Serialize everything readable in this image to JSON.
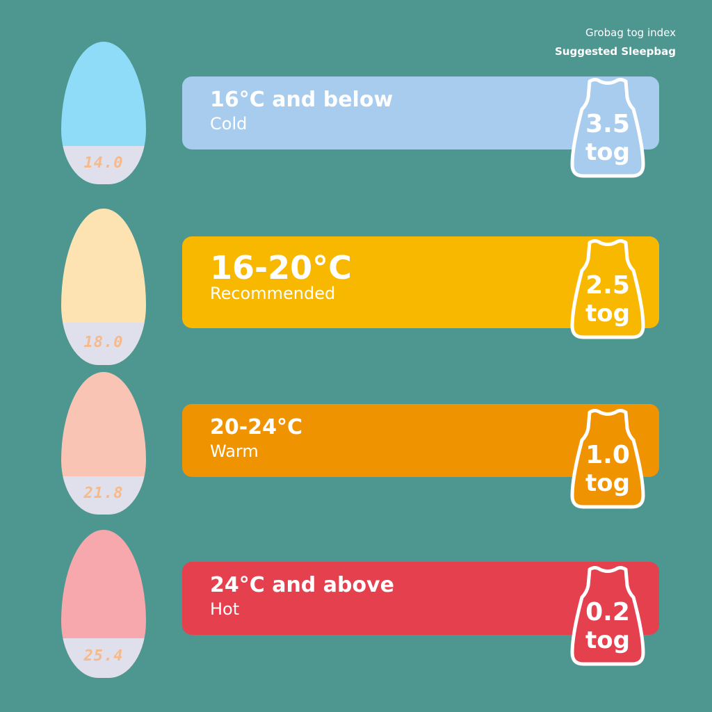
{
  "header": {
    "line1": "Grobag tog index",
    "line2": "Suggested Sleepbag"
  },
  "rows": [
    {
      "title": "16°C and below",
      "subtitle": "Cold",
      "tog": "3.5",
      "unit": "tog",
      "display": "14.0",
      "bar_color": "#a8ccee",
      "egg_color": "#8fdcf8"
    },
    {
      "title": "16-20°C",
      "subtitle": "Recommended",
      "tog": "2.5",
      "unit": "tog",
      "display": "18.0",
      "bar_color": "#f9b800",
      "egg_color": "#fde3b2"
    },
    {
      "title": "20-24°C",
      "subtitle": "Warm",
      "tog": "1.0",
      "unit": "tog",
      "display": "21.8",
      "bar_color": "#f09300",
      "egg_color": "#f9c4b4"
    },
    {
      "title": "24°C and above",
      "subtitle": "Hot",
      "tog": "0.2",
      "unit": "tog",
      "display": "25.4",
      "bar_color": "#e5404e",
      "egg_color": "#f7a8ac"
    }
  ],
  "colors": {
    "background": "#4e9690",
    "egg_base": "#dfe0ec",
    "display_digits": "#f8b98a"
  }
}
